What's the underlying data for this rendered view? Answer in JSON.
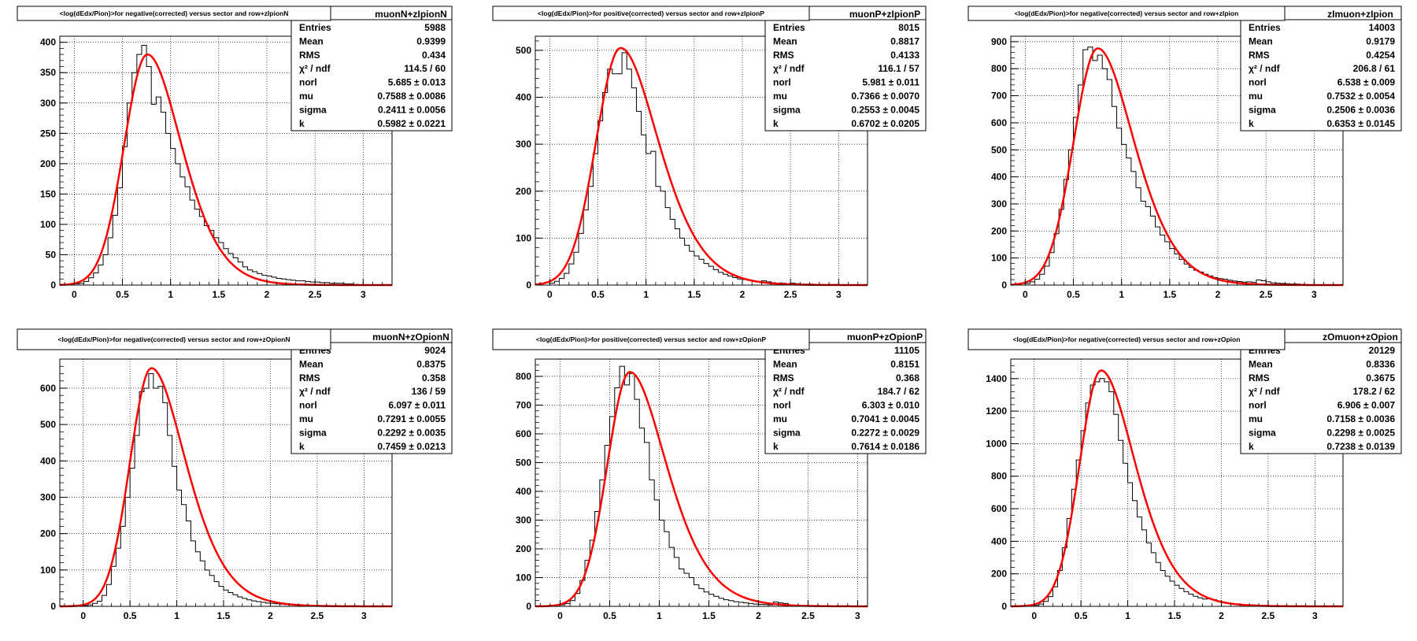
{
  "page": {
    "background": "#ffffff"
  },
  "style": {
    "hist_color": "#000000",
    "fit_color": "#ff0000",
    "grid_color": "#000000",
    "frame_color": "#000000"
  },
  "chart_data": [
    {
      "type": "histogram",
      "title": "<log(dEdx/Pion)>for negative(corrected) versus sector and row+zIpionN",
      "stats_title": "muonN+zIpionN",
      "stats": [
        {
          "name": "Entries",
          "value": "5988"
        },
        {
          "name": "Mean",
          "value": "0.9399"
        },
        {
          "name": "RMS",
          "value": "0.434"
        },
        {
          "name": "χ² / ndf",
          "value": "114.5 / 60"
        },
        {
          "name": "norl",
          "value": "5.685 ± 0.013"
        },
        {
          "name": "mu",
          "value": "0.7588 ± 0.0086"
        },
        {
          "name": "sigma",
          "value": "0.2411 ± 0.0056"
        },
        {
          "name": "k",
          "value": "0.5982 ± 0.0221"
        }
      ],
      "xlim": [
        -0.15,
        3.3
      ],
      "ylim": [
        0,
        410
      ],
      "xticks": [
        0,
        0.5,
        1,
        1.5,
        2,
        2.5,
        3
      ],
      "xtick_labels": [
        "0",
        "0.5",
        "1",
        "1.5",
        "2",
        "2.5",
        "3"
      ],
      "yticks": [
        0,
        50,
        100,
        150,
        200,
        250,
        300,
        350,
        400
      ],
      "ytick_labels": [
        "0",
        "50",
        "100",
        "150",
        "200",
        "250",
        "300",
        "350",
        "400"
      ],
      "bin_width": 0.05,
      "x": [
        0.0,
        0.05,
        0.1,
        0.15,
        0.2,
        0.25,
        0.3,
        0.35,
        0.4,
        0.45,
        0.5,
        0.55,
        0.6,
        0.65,
        0.7,
        0.75,
        0.8,
        0.85,
        0.9,
        0.95,
        1.0,
        1.05,
        1.1,
        1.15,
        1.2,
        1.25,
        1.3,
        1.35,
        1.4,
        1.45,
        1.5,
        1.55,
        1.6,
        1.65,
        1.7,
        1.75,
        1.8,
        1.85,
        1.9,
        1.95,
        2.0,
        2.05,
        2.1,
        2.15,
        2.2,
        2.25,
        2.3,
        2.35,
        2.4,
        2.45,
        2.5,
        2.55,
        2.6,
        2.65,
        2.7,
        2.75,
        2.8,
        2.85,
        2.9
      ],
      "values": [
        2,
        3,
        6,
        12,
        20,
        33,
        50,
        78,
        115,
        160,
        228,
        300,
        350,
        380,
        395,
        360,
        298,
        310,
        285,
        250,
        225,
        200,
        178,
        162,
        140,
        125,
        113,
        98,
        90,
        78,
        70,
        60,
        52,
        45,
        38,
        30,
        25,
        22,
        19,
        16,
        15,
        13,
        11,
        10,
        9,
        8,
        7,
        7,
        6,
        5,
        5,
        4,
        4,
        3,
        3,
        3,
        2,
        2,
        1
      ],
      "fit": {
        "norm": 380,
        "mu": 0.7588,
        "sigma": 0.2411,
        "k": 0.5982
      }
    },
    {
      "type": "histogram",
      "title": "<log(dEdx/Pion)>for positive(corrected) versus sector and row+zIpionP",
      "stats_title": "muonP+zIpionP",
      "stats": [
        {
          "name": "Entries",
          "value": "8015"
        },
        {
          "name": "Mean",
          "value": "0.8817"
        },
        {
          "name": "RMS",
          "value": "0.4133"
        },
        {
          "name": "χ² / ndf",
          "value": "116.1 / 57"
        },
        {
          "name": "norl",
          "value": "5.981 ± 0.011"
        },
        {
          "name": "mu",
          "value": "0.7366 ± 0.0070"
        },
        {
          "name": "sigma",
          "value": "0.2553 ± 0.0045"
        },
        {
          "name": "k",
          "value": "0.6702 ± 0.0205"
        }
      ],
      "xlim": [
        -0.15,
        3.3
      ],
      "ylim": [
        0,
        530
      ],
      "xticks": [
        0,
        0.5,
        1,
        1.5,
        2,
        2.5,
        3
      ],
      "xtick_labels": [
        "0",
        "0.5",
        "1",
        "1.5",
        "2",
        "2.5",
        "3"
      ],
      "yticks": [
        0,
        100,
        200,
        300,
        400,
        500
      ],
      "ytick_labels": [
        "0",
        "100",
        "200",
        "300",
        "400",
        "500"
      ],
      "bin_width": 0.05,
      "x": [
        0.0,
        0.05,
        0.1,
        0.15,
        0.2,
        0.25,
        0.3,
        0.35,
        0.4,
        0.45,
        0.5,
        0.55,
        0.6,
        0.65,
        0.7,
        0.75,
        0.8,
        0.85,
        0.9,
        0.95,
        1.0,
        1.05,
        1.1,
        1.15,
        1.2,
        1.25,
        1.3,
        1.35,
        1.4,
        1.45,
        1.5,
        1.55,
        1.6,
        1.65,
        1.7,
        1.75,
        1.8,
        1.85,
        1.9,
        1.95,
        2.0,
        2.05,
        2.1,
        2.15,
        2.2,
        2.25,
        2.3,
        2.35,
        2.4,
        2.45,
        2.5,
        2.55,
        2.6,
        2.65,
        2.7,
        2.75,
        2.8,
        2.85,
        2.9
      ],
      "values": [
        4,
        8,
        14,
        25,
        45,
        70,
        110,
        160,
        210,
        280,
        350,
        410,
        460,
        450,
        450,
        495,
        460,
        420,
        370,
        320,
        280,
        285,
        210,
        200,
        165,
        140,
        120,
        100,
        85,
        72,
        62,
        55,
        46,
        40,
        33,
        27,
        23,
        19,
        16,
        13,
        12,
        10,
        8,
        7,
        9,
        7,
        5,
        4,
        4,
        3,
        4,
        3,
        2,
        2,
        2,
        1,
        1,
        1,
        1
      ],
      "fit": {
        "norm": 505,
        "mu": 0.7366,
        "sigma": 0.2553,
        "k": 0.6702
      }
    },
    {
      "type": "histogram",
      "title": "<log(dEdx/Pion)>for negative(corrected) versus sector and row+zIpion",
      "stats_title": "zImuon+zIpion",
      "stats": [
        {
          "name": "Entries",
          "value": "14003"
        },
        {
          "name": "Mean",
          "value": "0.9179"
        },
        {
          "name": "RMS",
          "value": "0.4254"
        },
        {
          "name": "χ² / ndf",
          "value": "206.8 / 61"
        },
        {
          "name": "norl",
          "value": "6.538 ± 0.009"
        },
        {
          "name": "mu",
          "value": "0.7532 ± 0.0054"
        },
        {
          "name": "sigma",
          "value": "0.2506 ± 0.0036"
        },
        {
          "name": "k",
          "value": "0.6353 ± 0.0145"
        }
      ],
      "xlim": [
        -0.15,
        3.3
      ],
      "ylim": [
        0,
        920
      ],
      "xticks": [
        0,
        0.5,
        1,
        1.5,
        2,
        2.5,
        3
      ],
      "xtick_labels": [
        "0",
        "0.5",
        "1",
        "1.5",
        "2",
        "2.5",
        "3"
      ],
      "yticks": [
        0,
        100,
        200,
        300,
        400,
        500,
        600,
        700,
        800,
        900
      ],
      "ytick_labels": [
        "0",
        "100",
        "200",
        "300",
        "400",
        "500",
        "600",
        "700",
        "800",
        "900"
      ],
      "bin_width": 0.05,
      "x": [
        0.0,
        0.05,
        0.1,
        0.15,
        0.2,
        0.25,
        0.3,
        0.35,
        0.4,
        0.45,
        0.5,
        0.55,
        0.6,
        0.65,
        0.7,
        0.75,
        0.8,
        0.85,
        0.9,
        0.95,
        1.0,
        1.05,
        1.1,
        1.15,
        1.2,
        1.25,
        1.3,
        1.35,
        1.4,
        1.45,
        1.5,
        1.55,
        1.6,
        1.65,
        1.7,
        1.75,
        1.8,
        1.85,
        1.9,
        1.95,
        2.0,
        2.05,
        2.1,
        2.15,
        2.2,
        2.25,
        2.3,
        2.35,
        2.4,
        2.45,
        2.5,
        2.55,
        2.6,
        2.65,
        2.7,
        2.75,
        2.8,
        2.85,
        2.9
      ],
      "values": [
        6,
        12,
        22,
        40,
        70,
        120,
        190,
        280,
        390,
        500,
        620,
        740,
        870,
        880,
        830,
        850,
        800,
        760,
        660,
        580,
        520,
        470,
        420,
        360,
        310,
        290,
        255,
        215,
        185,
        160,
        135,
        115,
        95,
        78,
        65,
        55,
        48,
        40,
        34,
        28,
        24,
        22,
        18,
        15,
        13,
        11,
        12,
        10,
        19,
        16,
        12,
        8,
        7,
        6,
        5,
        4,
        4,
        3,
        2
      ],
      "fit": {
        "norm": 875,
        "mu": 0.7532,
        "sigma": 0.2506,
        "k": 0.6353
      }
    },
    {
      "type": "histogram",
      "title": "<log(dEdx/Pion)>for negative(corrected) versus sector and row+zOpionN",
      "stats_title": "muonN+zOpionN",
      "stats": [
        {
          "name": "Entries",
          "value": "9024"
        },
        {
          "name": "Mean",
          "value": "0.8375"
        },
        {
          "name": "RMS",
          "value": "0.358"
        },
        {
          "name": "χ² / ndf",
          "value": "136 / 59"
        },
        {
          "name": "norl",
          "value": "6.097 ± 0.011"
        },
        {
          "name": "mu",
          "value": "0.7291 ± 0.0055"
        },
        {
          "name": "sigma",
          "value": "0.2292 ± 0.0035"
        },
        {
          "name": "k",
          "value": "0.7459 ± 0.0213"
        }
      ],
      "xlim": [
        -0.25,
        3.3
      ],
      "ylim": [
        0,
        680
      ],
      "xticks": [
        0,
        0.5,
        1,
        1.5,
        2,
        2.5,
        3
      ],
      "xtick_labels": [
        "0",
        "0.5",
        "1",
        "1.5",
        "2",
        "2.5",
        "3"
      ],
      "yticks": [
        0,
        100,
        200,
        300,
        400,
        500,
        600
      ],
      "ytick_labels": [
        "0",
        "100",
        "200",
        "300",
        "400",
        "500",
        "600"
      ],
      "bin_width": 0.05,
      "x": [
        0.0,
        0.05,
        0.1,
        0.15,
        0.2,
        0.25,
        0.3,
        0.35,
        0.4,
        0.45,
        0.5,
        0.55,
        0.6,
        0.65,
        0.7,
        0.75,
        0.8,
        0.85,
        0.9,
        0.95,
        1.0,
        1.05,
        1.1,
        1.15,
        1.2,
        1.25,
        1.3,
        1.35,
        1.4,
        1.45,
        1.5,
        1.55,
        1.6,
        1.65,
        1.7,
        1.75,
        1.8,
        1.85,
        1.9,
        1.95,
        2.0,
        2.05,
        2.1,
        2.15,
        2.2,
        2.25,
        2.3,
        2.35,
        2.4,
        2.45,
        2.5,
        2.55,
        2.6,
        2.65,
        2.7,
        2.75,
        2.8,
        2.85,
        2.9
      ],
      "values": [
        2,
        4,
        8,
        14,
        30,
        60,
        110,
        160,
        220,
        300,
        380,
        470,
        590,
        600,
        640,
        600,
        605,
        560,
        470,
        385,
        320,
        280,
        235,
        180,
        150,
        125,
        100,
        85,
        68,
        55,
        45,
        38,
        32,
        26,
        22,
        18,
        15,
        13,
        11,
        9,
        8,
        7,
        6,
        5,
        5,
        4,
        4,
        3,
        3,
        2,
        2,
        2,
        1,
        1,
        1,
        1,
        1,
        0,
        0
      ],
      "fit": {
        "norm": 655,
        "mu": 0.7291,
        "sigma": 0.2292,
        "k": 0.7459
      }
    },
    {
      "type": "histogram",
      "title": "<log(dEdx/Pion)>for positive(corrected) versus sector and row+zOpionP",
      "stats_title": "muonP+zOpionP",
      "stats": [
        {
          "name": "Entries",
          "value": "11105"
        },
        {
          "name": "Mean",
          "value": "0.8151"
        },
        {
          "name": "RMS",
          "value": "0.368"
        },
        {
          "name": "χ² / ndf",
          "value": "184.7 / 62"
        },
        {
          "name": "norl",
          "value": "6.303 ± 0.010"
        },
        {
          "name": "mu",
          "value": "0.7041 ± 0.0045"
        },
        {
          "name": "sigma",
          "value": "0.2272 ± 0.0029"
        },
        {
          "name": "k",
          "value": "0.7614 ± 0.0186"
        }
      ],
      "xlim": [
        -0.25,
        3.1
      ],
      "ylim": [
        0,
        860
      ],
      "xticks": [
        0,
        0.5,
        1,
        1.5,
        2,
        2.5,
        3
      ],
      "xtick_labels": [
        "0",
        "0.5",
        "1",
        "1.5",
        "2",
        "2.5",
        "3"
      ],
      "yticks": [
        0,
        100,
        200,
        300,
        400,
        500,
        600,
        700,
        800
      ],
      "ytick_labels": [
        "0",
        "100",
        "200",
        "300",
        "400",
        "500",
        "600",
        "700",
        "800"
      ],
      "bin_width": 0.05,
      "x": [
        0.0,
        0.05,
        0.1,
        0.15,
        0.2,
        0.25,
        0.3,
        0.35,
        0.4,
        0.45,
        0.5,
        0.55,
        0.6,
        0.65,
        0.7,
        0.75,
        0.8,
        0.85,
        0.9,
        0.95,
        1.0,
        1.05,
        1.1,
        1.15,
        1.2,
        1.25,
        1.3,
        1.35,
        1.4,
        1.45,
        1.5,
        1.55,
        1.6,
        1.65,
        1.7,
        1.75,
        1.8,
        1.85,
        1.9,
        1.95,
        2.0,
        2.05,
        2.1,
        2.15,
        2.2,
        2.25,
        2.3,
        2.35,
        2.4,
        2.45,
        2.5,
        2.55,
        2.6,
        2.65,
        2.7,
        2.75,
        2.8,
        2.85,
        2.9
      ],
      "values": [
        5,
        10,
        20,
        45,
        90,
        160,
        230,
        330,
        440,
        560,
        660,
        760,
        835,
        770,
        810,
        720,
        620,
        570,
        440,
        370,
        300,
        260,
        205,
        170,
        130,
        115,
        100,
        75,
        62,
        50,
        42,
        35,
        28,
        23,
        20,
        16,
        14,
        12,
        10,
        8,
        7,
        6,
        5,
        15,
        12,
        10,
        5,
        4,
        3,
        3,
        2,
        2,
        1,
        1,
        1,
        1,
        1,
        0,
        0
      ],
      "fit": {
        "norm": 815,
        "mu": 0.7041,
        "sigma": 0.2272,
        "k": 0.7614
      }
    },
    {
      "type": "histogram",
      "title": "<log(dEdx/Pion)>for negative(corrected) versus sector and row+zOpion",
      "stats_title": "zOmuon+zOpion",
      "stats": [
        {
          "name": "Entries",
          "value": "20129"
        },
        {
          "name": "Mean",
          "value": "0.8336"
        },
        {
          "name": "RMS",
          "value": "0.3675"
        },
        {
          "name": "χ² / ndf",
          "value": "178.2 / 62"
        },
        {
          "name": "norl",
          "value": "6.906 ± 0.007"
        },
        {
          "name": "mu",
          "value": "0.7158 ± 0.0036"
        },
        {
          "name": "sigma",
          "value": "0.2298 ± 0.0025"
        },
        {
          "name": "k",
          "value": "0.7238 ± 0.0139"
        }
      ],
      "xlim": [
        -0.25,
        3.3
      ],
      "ylim": [
        0,
        1520
      ],
      "xticks": [
        0,
        0.5,
        1,
        1.5,
        2,
        2.5,
        3
      ],
      "xtick_labels": [
        "0",
        "0.5",
        "1",
        "1.5",
        "2",
        "2.5",
        "3"
      ],
      "yticks": [
        0,
        200,
        400,
        600,
        800,
        1000,
        1200,
        1400
      ],
      "ytick_labels": [
        "0",
        "200",
        "400",
        "600",
        "800",
        "1000",
        "1200",
        "1400"
      ],
      "bin_width": 0.05,
      "x": [
        0.0,
        0.05,
        0.1,
        0.15,
        0.2,
        0.25,
        0.3,
        0.35,
        0.4,
        0.45,
        0.5,
        0.55,
        0.6,
        0.65,
        0.7,
        0.75,
        0.8,
        0.85,
        0.9,
        0.95,
        1.0,
        1.05,
        1.1,
        1.15,
        1.2,
        1.25,
        1.3,
        1.35,
        1.4,
        1.45,
        1.5,
        1.55,
        1.6,
        1.65,
        1.7,
        1.75,
        1.8,
        1.85,
        1.9,
        1.95,
        2.0,
        2.05,
        2.1,
        2.15,
        2.2,
        2.25,
        2.3,
        2.35,
        2.4,
        2.45,
        2.5,
        2.55,
        2.6,
        2.65,
        2.7,
        2.75,
        2.8,
        2.85,
        2.9
      ],
      "values": [
        6,
        14,
        30,
        60,
        120,
        220,
        360,
        540,
        720,
        900,
        1080,
        1250,
        1360,
        1380,
        1400,
        1380,
        1320,
        1180,
        1020,
        880,
        760,
        650,
        550,
        470,
        390,
        330,
        270,
        220,
        185,
        155,
        130,
        110,
        90,
        75,
        62,
        52,
        45,
        48,
        42,
        30,
        25,
        20,
        17,
        14,
        12,
        10,
        9,
        8,
        7,
        6,
        5,
        4,
        3,
        3,
        2,
        2,
        1,
        1,
        1
      ],
      "fit": {
        "norm": 1450,
        "mu": 0.7158,
        "sigma": 0.2298,
        "k": 0.7238
      }
    }
  ]
}
